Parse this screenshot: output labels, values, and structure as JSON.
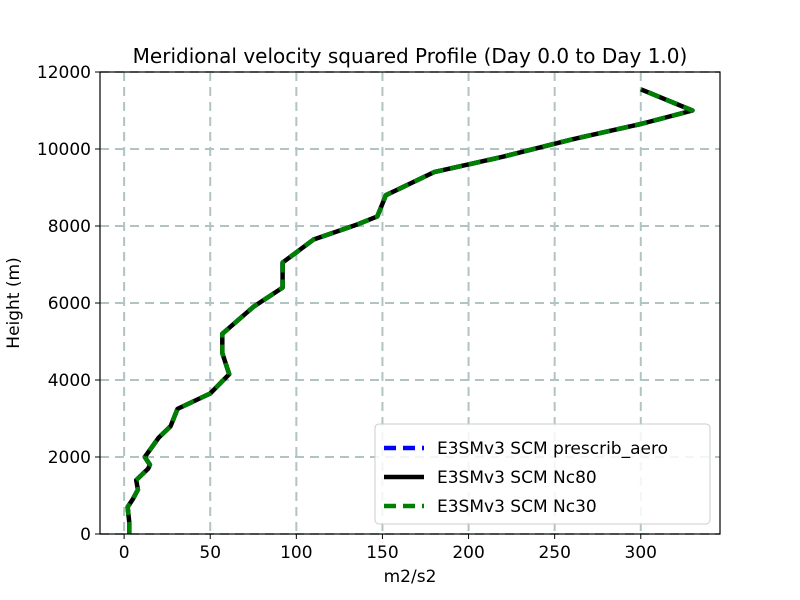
{
  "chart_data": {
    "type": "line",
    "title": "Meridional velocity squared Profile (Day 0.0 to Day 1.0)",
    "xlabel": "m2/s2",
    "ylabel": "Height (m)",
    "xlim": [
      -14,
      346
    ],
    "ylim": [
      0,
      12000
    ],
    "xticks": [
      0,
      50,
      100,
      150,
      200,
      250,
      300
    ],
    "yticks": [
      0,
      2000,
      4000,
      6000,
      8000,
      10000,
      12000
    ],
    "grid": true,
    "legend_position": "lower-right",
    "series": [
      {
        "name": "E3SMv3 SCM prescrib_aero",
        "color": "#0000ff",
        "style": "dashed",
        "x": [
          3,
          3,
          2,
          5,
          8,
          7,
          14,
          15,
          12,
          20,
          27,
          31,
          50,
          61,
          57,
          57,
          75,
          92,
          92,
          110,
          136,
          147,
          152,
          180,
          220,
          260,
          280,
          300,
          330,
          300
        ],
        "y": [
          0,
          300,
          700,
          900,
          1150,
          1400,
          1700,
          1800,
          2000,
          2500,
          2800,
          3250,
          3650,
          4150,
          4700,
          5200,
          5900,
          6400,
          7050,
          7650,
          8050,
          8250,
          8800,
          9400,
          9800,
          10250,
          10450,
          10650,
          11000,
          11550
        ]
      },
      {
        "name": "E3SMv3 SCM Nc80",
        "color": "#000000",
        "style": "solid",
        "x": [
          3,
          3,
          2,
          5,
          8,
          7,
          14,
          15,
          12,
          20,
          27,
          31,
          50,
          61,
          57,
          57,
          75,
          92,
          92,
          110,
          136,
          147,
          152,
          180,
          220,
          260,
          280,
          300,
          330,
          300
        ],
        "y": [
          0,
          300,
          700,
          900,
          1150,
          1400,
          1700,
          1800,
          2000,
          2500,
          2800,
          3250,
          3650,
          4150,
          4700,
          5200,
          5900,
          6400,
          7050,
          7650,
          8050,
          8250,
          8800,
          9400,
          9800,
          10250,
          10450,
          10650,
          11000,
          11550
        ]
      },
      {
        "name": "E3SMv3 SCM Nc30",
        "color": "#008000",
        "style": "dashed",
        "x": [
          3,
          3,
          2,
          5,
          8,
          7,
          14,
          15,
          12,
          20,
          27,
          31,
          50,
          61,
          57,
          57,
          75,
          92,
          92,
          110,
          136,
          147,
          152,
          180,
          220,
          260,
          280,
          300,
          330,
          300
        ],
        "y": [
          0,
          300,
          700,
          900,
          1150,
          1400,
          1700,
          1800,
          2000,
          2500,
          2800,
          3250,
          3650,
          4150,
          4700,
          5200,
          5900,
          6400,
          7050,
          7650,
          8050,
          8250,
          8800,
          9400,
          9800,
          10250,
          10450,
          10650,
          11000,
          11550
        ]
      }
    ]
  }
}
